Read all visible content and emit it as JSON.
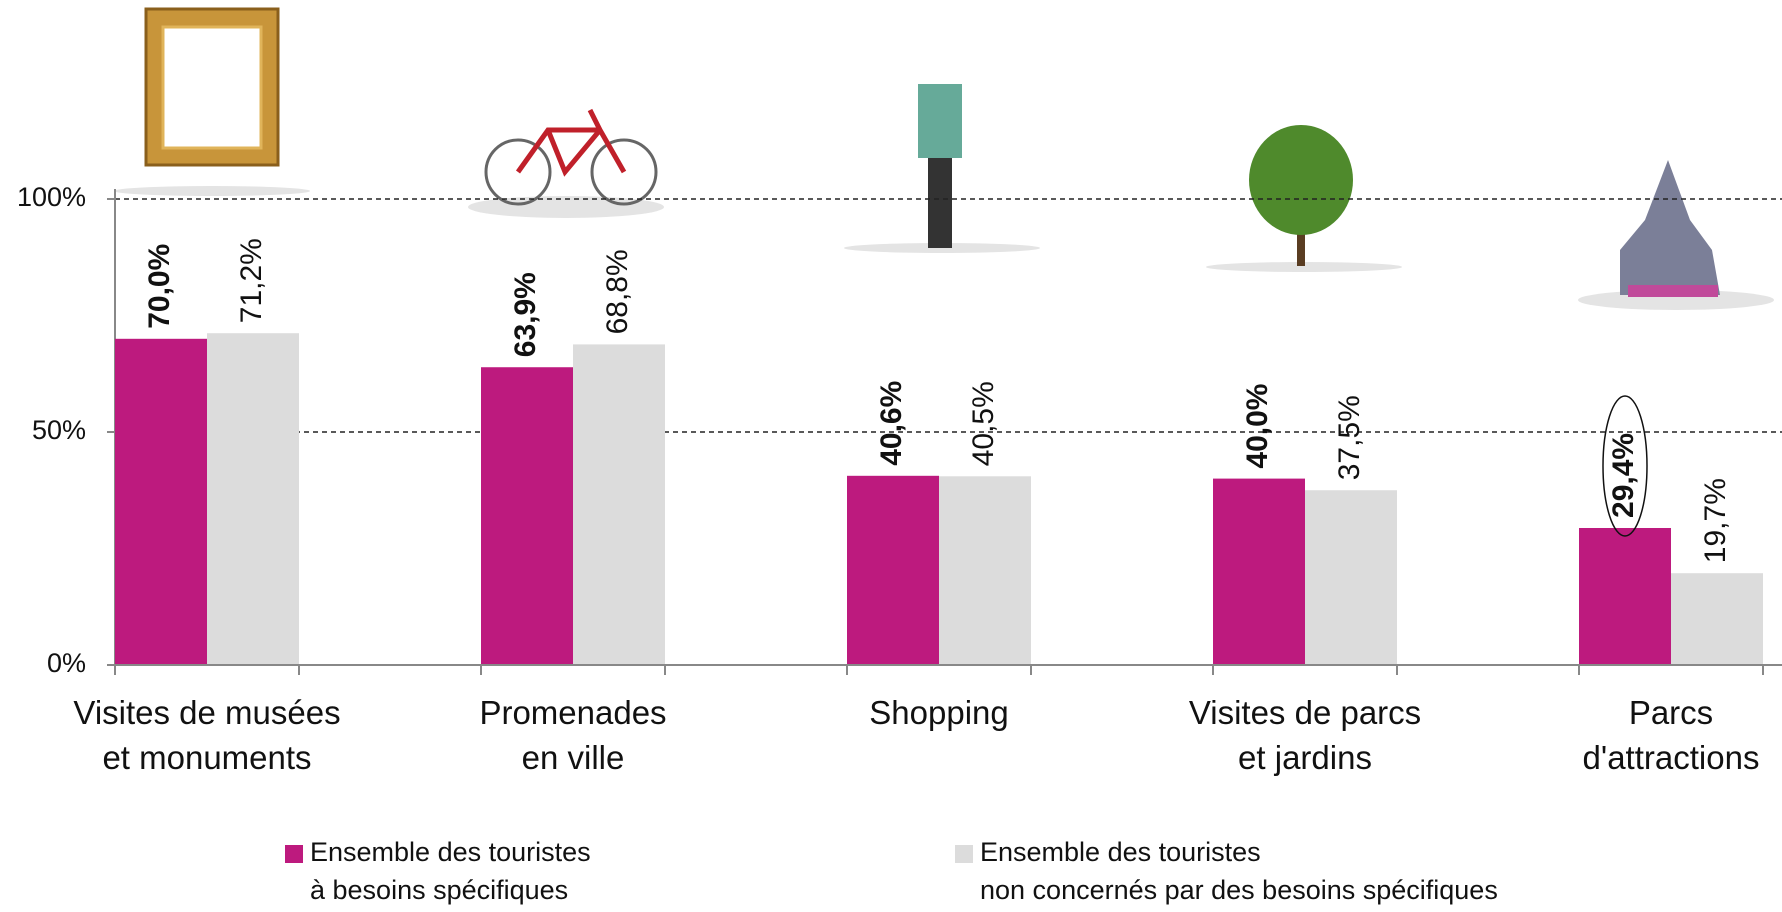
{
  "chart_data": {
    "type": "bar",
    "categories": [
      "Visites de musées\net monuments",
      "Promenades\nen ville",
      "Shopping",
      "Visites de parcs\net jardins",
      "Parcs\nd'attractions"
    ],
    "series": [
      {
        "name": "Ensemble des touristes\nà besoins spécifiques",
        "color": "#bd1a7e",
        "values": [
          70.0,
          63.9,
          40.6,
          40.0,
          29.4
        ],
        "value_labels": [
          "70,0%",
          "63,9%",
          "40,6%",
          "40,0%",
          "29,4%"
        ]
      },
      {
        "name": "Ensemble des touristes\nnon concernés par des besoins spécifiques",
        "color": "#dcdcdc",
        "values": [
          71.2,
          68.8,
          40.5,
          37.5,
          19.7
        ],
        "value_labels": [
          "71,2%",
          "68,8%",
          "40,5%",
          "37,5%",
          "19,7%"
        ]
      }
    ],
    "ylim": [
      0,
      100
    ],
    "yticks": [
      {
        "value": 0,
        "label": "0%"
      },
      {
        "value": 50,
        "label": "50%"
      },
      {
        "value": 100,
        "label": "100%"
      }
    ],
    "grid": true
  }
}
